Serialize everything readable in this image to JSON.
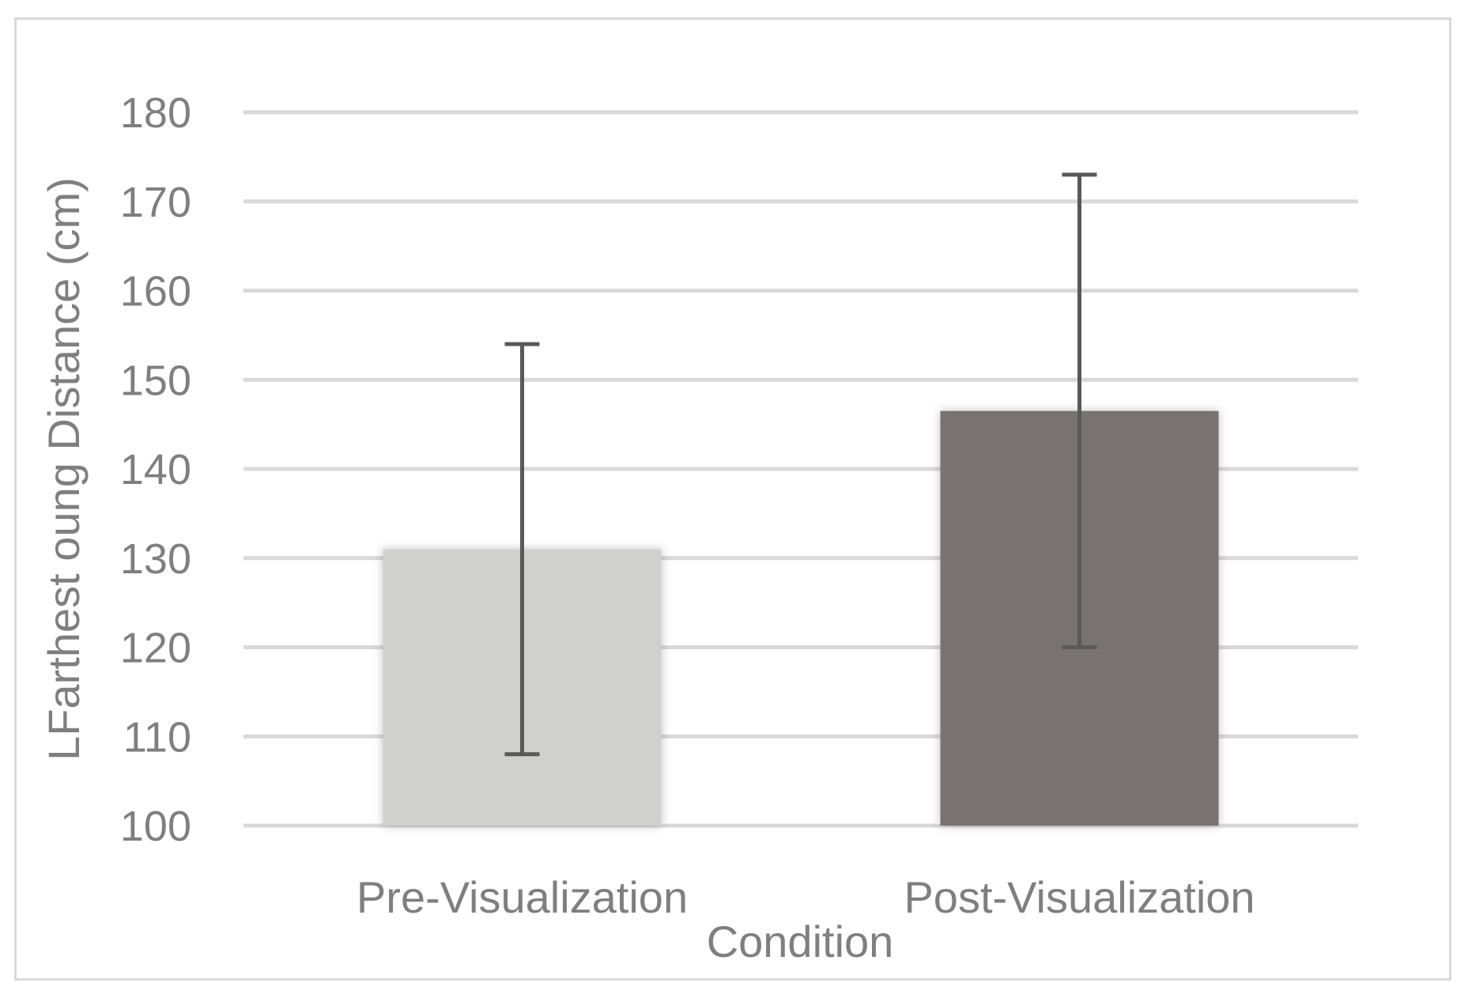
{
  "chart_data": {
    "type": "bar",
    "categories": [
      "Pre-Visualization",
      "Post-Visualization"
    ],
    "values": [
      131,
      146.5
    ],
    "error_low": [
      108,
      120
    ],
    "error_high": [
      154,
      173
    ],
    "colors": [
      "#d0d0ce",
      "#787372"
    ],
    "error_bar_color": "#595959",
    "title": "",
    "xlabel": "Condition",
    "ylabel": "LFarthest oung Distance (cm)",
    "ylim": [
      100,
      180
    ],
    "yticks": [
      100,
      110,
      120,
      130,
      140,
      150,
      160,
      170,
      180
    ],
    "grid": true,
    "grid_color": "#d9d9d9",
    "legend": "none"
  }
}
